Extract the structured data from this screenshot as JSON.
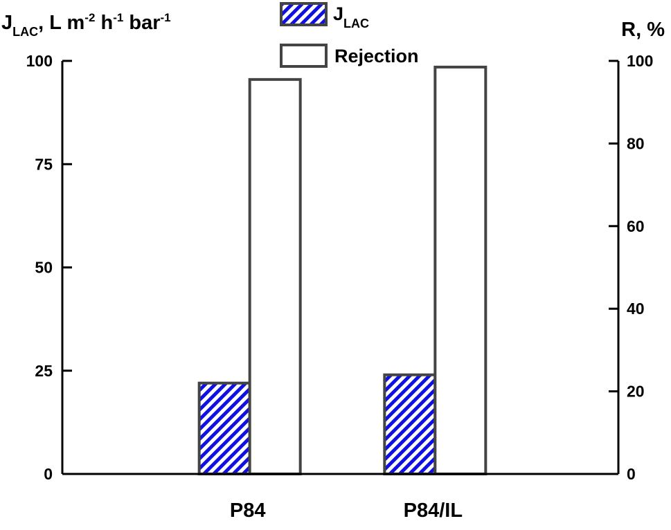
{
  "chart_data": {
    "type": "bar",
    "categories": [
      "P84",
      "P84/IL"
    ],
    "series": [
      {
        "name": "J_LAC",
        "legend_main": "J",
        "legend_sub": "LAC",
        "axis": "left",
        "values": [
          22,
          24
        ],
        "fill": "hatched-blue",
        "color": "#1010e0"
      },
      {
        "name": "Rejection",
        "axis": "right",
        "values": [
          95.5,
          98.5
        ],
        "fill": "white",
        "color": "#ffffff"
      }
    ],
    "left_axis": {
      "label_main": "J",
      "label_sub": "LAC",
      "label_mid": ", L m",
      "label_sup1": "-2",
      "label_mid2": " h",
      "label_sup2": "-1",
      "label_mid3": " bar",
      "label_sup3": "-1",
      "ylim": [
        0,
        100
      ],
      "ticks": [
        0,
        25,
        50,
        75,
        100
      ]
    },
    "right_axis": {
      "label": "R, %",
      "ylim": [
        0,
        100
      ],
      "ticks": [
        0,
        20,
        40,
        60,
        80,
        100
      ]
    },
    "grid": false,
    "legend_position": "top-center",
    "bar_outline_color": "#444444"
  }
}
